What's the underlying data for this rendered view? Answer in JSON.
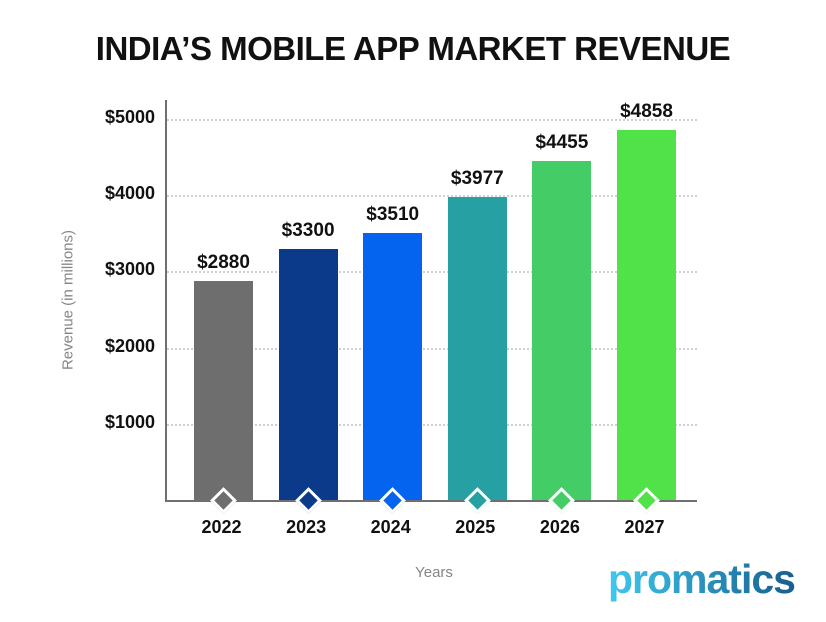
{
  "title": "INDIA’S MOBILE APP MARKET REVENUE",
  "chart_data": {
    "type": "bar",
    "categories": [
      "2022",
      "2023",
      "2024",
      "2025",
      "2026",
      "2027"
    ],
    "values": [
      2880,
      3300,
      3510,
      3977,
      4455,
      4858
    ],
    "bar_labels": [
      "$2880",
      "$3300",
      "$3510",
      "$3977",
      "$4455",
      "$4858"
    ],
    "bar_colors": [
      "#6e6e6e",
      "#0b3a8a",
      "#0463ef",
      "#26a0a3",
      "#44cd66",
      "#51e24a"
    ],
    "title": "INDIA’S MOBILE APP MARKET REVENUE",
    "xlabel": "Years",
    "ylabel": "Revenue (in millions)",
    "ylim": [
      0,
      5000
    ],
    "yticks": [
      {
        "value": 1000,
        "label": "$1000"
      },
      {
        "value": 2000,
        "label": "$2000"
      },
      {
        "value": 3000,
        "label": "$3000"
      },
      {
        "value": 4000,
        "label": "$4000"
      },
      {
        "value": 5000,
        "label": "$5000"
      }
    ],
    "grid": "horizontal-dotted",
    "legend": "none",
    "marker": "diamond-at-bar-base",
    "axis_color": "#6f6f6f",
    "grid_color": "#d0d0d0",
    "label_color": "#111111",
    "muted_text_color": "#868686"
  },
  "branding": {
    "name": "promatics",
    "gradient_start": "#3fc8ef",
    "gradient_end": "#175e8d"
  }
}
